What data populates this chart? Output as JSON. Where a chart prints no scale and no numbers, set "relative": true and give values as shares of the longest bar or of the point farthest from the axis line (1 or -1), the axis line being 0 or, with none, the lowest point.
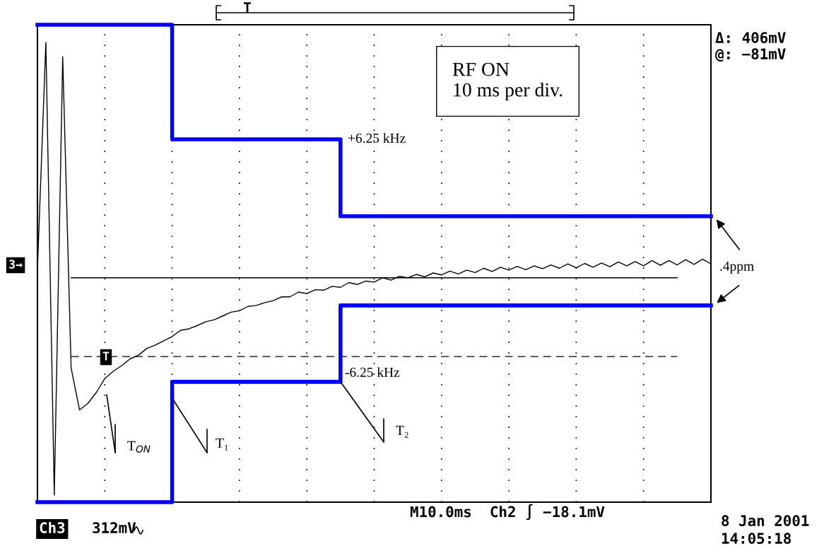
{
  "chart_data": {
    "type": "line",
    "relative": true,
    "grid": true,
    "tick_labels": false,
    "legend": false,
    "categories": [
      null,
      null,
      null,
      null,
      null,
      null,
      null,
      null,
      null,
      null,
      null,
      null,
      null,
      null,
      null,
      null,
      null,
      null,
      null,
      null,
      null,
      null,
      null,
      null,
      null,
      null,
      null,
      null,
      null,
      null,
      null,
      null,
      null,
      null,
      null,
      null,
      null,
      null,
      null,
      null,
      null,
      null,
      null,
      null,
      null,
      null,
      null,
      null,
      null,
      null,
      null,
      null,
      null,
      null,
      null,
      null,
      null,
      null,
      null,
      null,
      null,
      null,
      null,
      null,
      null,
      null,
      null,
      null,
      null,
      null,
      null,
      null,
      null,
      null,
      null,
      null,
      null,
      null,
      null,
      null,
      null
    ],
    "series": [
      {
        "color": "#000000",
        "values": [
          0.489,
          0.963,
          0.015,
          0.933,
          0.281,
          0.193,
          0.207,
          0.23,
          0.259,
          0.274,
          0.286,
          0.3,
          0.308,
          0.322,
          0.329,
          0.338,
          0.347,
          0.36,
          0.363,
          0.37,
          0.378,
          0.382,
          0.39,
          0.398,
          0.401,
          0.41,
          0.412,
          0.418,
          0.422,
          0.43,
          0.43,
          0.44,
          0.437,
          0.445,
          0.444,
          0.452,
          0.45,
          0.46,
          0.456,
          0.463,
          0.461,
          0.47,
          0.465,
          0.473,
          0.47,
          0.477,
          0.472,
          0.48,
          0.476,
          0.484,
          0.478,
          0.486,
          0.481,
          0.49,
          0.483,
          0.492,
          0.486,
          0.494,
          0.487,
          0.495,
          0.489,
          0.497,
          0.49,
          0.499,
          0.491,
          0.5,
          0.492,
          0.501,
          0.493,
          0.503,
          0.495,
          0.504,
          0.495,
          0.506,
          0.496,
          0.506,
          0.497,
          0.508,
          0.498,
          0.509,
          0.499
        ]
      },
      {
        "type": "step",
        "color": "#0000ff",
        "values": [
          1,
          1,
          1,
          1,
          1,
          1,
          1,
          1,
          1,
          1,
          1,
          1,
          1,
          1,
          1,
          1,
          0.76,
          0.76,
          0.76,
          0.76,
          0.76,
          0.76,
          0.76,
          0.76,
          0.76,
          0.76,
          0.76,
          0.76,
          0.76,
          0.76,
          0.76,
          0.76,
          0.76,
          0.76,
          0.76,
          0.76,
          0.599,
          0.599,
          0.599,
          0.599,
          0.599,
          0.599,
          0.599,
          0.599,
          0.599,
          0.599,
          0.599,
          0.599,
          0.599,
          0.599,
          0.599,
          0.599,
          0.599,
          0.599,
          0.599,
          0.599,
          0.599,
          0.599,
          0.599,
          0.599,
          0.599,
          0.599,
          0.599,
          0.599,
          0.599,
          0.599,
          0.599,
          0.599,
          0.599,
          0.599,
          0.599,
          0.599,
          0.599,
          0.599,
          0.599,
          0.599,
          0.599,
          0.599,
          0.599,
          0.599,
          0.599
        ]
      },
      {
        "type": "step",
        "color": "#0000ff",
        "values": [
          0,
          0,
          0,
          0,
          0,
          0,
          0,
          0,
          0,
          0,
          0,
          0,
          0,
          0,
          0,
          0,
          0.252,
          0.252,
          0.252,
          0.252,
          0.252,
          0.252,
          0.252,
          0.252,
          0.252,
          0.252,
          0.252,
          0.252,
          0.252,
          0.252,
          0.252,
          0.252,
          0.252,
          0.252,
          0.252,
          0.252,
          0.412,
          0.412,
          0.412,
          0.412,
          0.412,
          0.412,
          0.412,
          0.412,
          0.412,
          0.412,
          0.412,
          0.412,
          0.412,
          0.412,
          0.412,
          0.412,
          0.412,
          0.412,
          0.412,
          0.412,
          0.412,
          0.412,
          0.412,
          0.412,
          0.412,
          0.412,
          0.412,
          0.412,
          0.412,
          0.412,
          0.412,
          0.412,
          0.412,
          0.412,
          0.412,
          0.412,
          0.412,
          0.412,
          0.412,
          0.412,
          0.412,
          0.412,
          0.412,
          0.412,
          0.412
        ]
      }
    ],
    "ref_lines": [
      {
        "axis": "y",
        "value": 0.47,
        "label": null,
        "color": "#000000",
        "line_style": "solid"
      },
      {
        "axis": "y",
        "value": 0.305,
        "label": null,
        "color": "#000000",
        "line_style": "dashed"
      }
    ],
    "annotations": [
      "RF ON\n10 ms per div.",
      "+6.25 kHz",
      "-6.25 kHz",
      "T$_{ON}$",
      "T₁",
      "T₂",
      ".4ppm",
      "Δ: 406mV",
      "@: −81mV",
      "M10.0ms  Ch2 ∫ −18.1mV",
      "8 Jan 2001",
      "14:05:18",
      "Ch3",
      "312mV",
      "3→",
      "T",
      "T"
    ]
  }
}
